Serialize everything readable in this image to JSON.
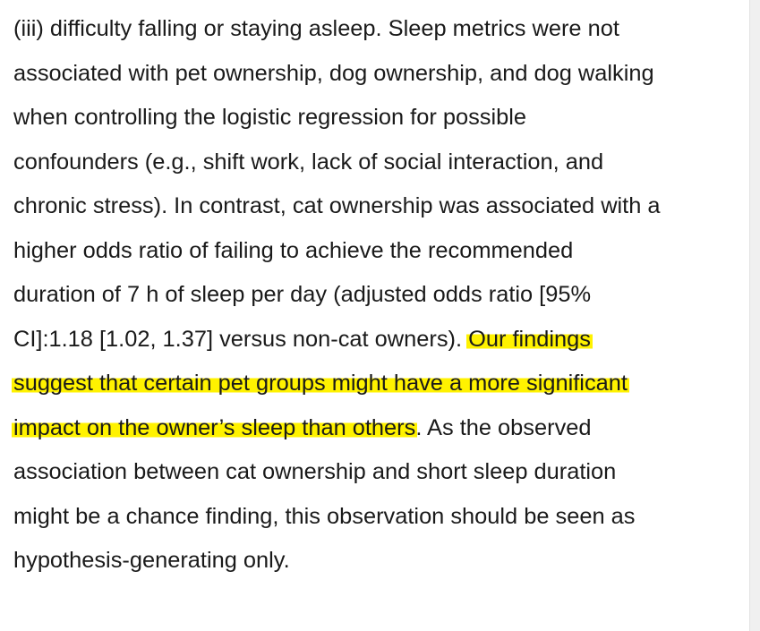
{
  "document": {
    "lines": [
      [
        {
          "text": "(iii) difficulty falling or staying asleep. Sleep metrics were not"
        }
      ],
      [
        {
          "text": "associated with pet ownership, dog ownership, and dog walking"
        }
      ],
      [
        {
          "text": "when controlling the logistic regression for possible"
        }
      ],
      [
        {
          "text": "confounders (e.g., shift work, lack of social interaction, and"
        }
      ],
      [
        {
          "text": "chronic stress). In contrast, cat ownership was associated with a"
        }
      ],
      [
        {
          "text": "higher odds ratio of failing to achieve the recommended"
        }
      ],
      [
        {
          "text": "duration of 7 h of sleep per day (adjusted odds ratio [95%"
        }
      ],
      [
        {
          "text": "CI]:1.18 [1.02, 1.37] versus non-cat owners). "
        },
        {
          "text": "Our findings",
          "highlight": true
        }
      ],
      [
        {
          "text": "suggest that certain pet groups might have a more significant",
          "highlight": true
        }
      ],
      [
        {
          "text": "impact on the owner’s sleep than others",
          "highlight": true
        },
        {
          "text": ". As the observed"
        }
      ],
      [
        {
          "text": "association between cat ownership and short sleep duration"
        }
      ],
      [
        {
          "text": "might be a chance finding, this observation should be seen as"
        }
      ],
      [
        {
          "text": "hypothesis-generating only."
        }
      ]
    ]
  }
}
